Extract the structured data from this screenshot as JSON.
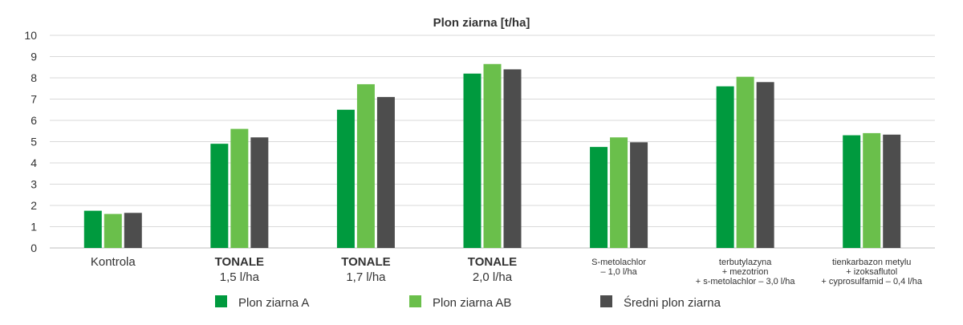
{
  "chart_data": {
    "type": "bar",
    "title": "Plon ziarna [t/ha]",
    "xlabel": "",
    "ylabel": "",
    "ylim": [
      0,
      10
    ],
    "yticks": [
      0,
      1,
      2,
      3,
      4,
      5,
      6,
      7,
      8,
      9,
      10
    ],
    "grid": true,
    "legend_position": "bottom",
    "categories": [
      {
        "lines": [
          "Kontrola"
        ],
        "style": "normal"
      },
      {
        "lines": [
          "TONALE",
          "1,5 l/ha"
        ],
        "style": "tonale"
      },
      {
        "lines": [
          "TONALE",
          "1,7 l/ha"
        ],
        "style": "tonale"
      },
      {
        "lines": [
          "TONALE",
          "2,0 l/ha"
        ],
        "style": "tonale"
      },
      {
        "lines": [
          "S-metolachlor",
          "– 1,0 l/ha"
        ],
        "style": "small"
      },
      {
        "lines": [
          "terbutylazyna",
          "+ mezotrion",
          "+ s-metolachlor – 3,0 l/ha"
        ],
        "style": "small"
      },
      {
        "lines": [
          "tienkarbazon metylu",
          "+ izoksaflutol",
          "+ cyprosulfamid – 0,4 l/ha"
        ],
        "style": "small"
      }
    ],
    "series": [
      {
        "name": "Plon ziarna A",
        "color": "#009a3e",
        "values": [
          1.75,
          4.9,
          6.5,
          8.2,
          4.75,
          7.6,
          5.3
        ]
      },
      {
        "name": "Plon ziarna AB",
        "color": "#6abf4b",
        "values": [
          1.6,
          5.6,
          7.7,
          8.65,
          5.2,
          8.05,
          5.4
        ]
      },
      {
        "name": "Średni plon ziarna",
        "color": "#4d4d4d",
        "values": [
          1.65,
          5.2,
          7.1,
          8.4,
          4.97,
          7.8,
          5.33
        ]
      }
    ]
  }
}
